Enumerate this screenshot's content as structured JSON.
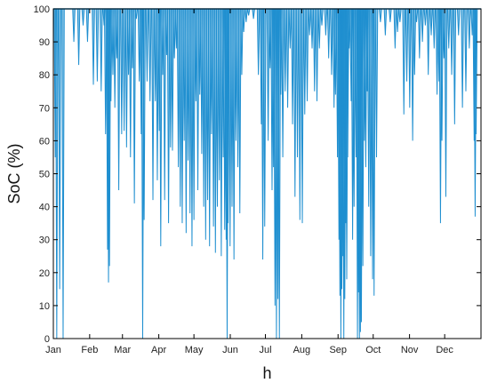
{
  "chart_data": {
    "type": "line",
    "title": "",
    "xlabel": "h",
    "ylabel": "SoC (%)",
    "ylim": [
      0,
      100
    ],
    "xlim": [
      0,
      8760
    ],
    "grid": false,
    "legend": "none",
    "yticks": [
      0,
      10,
      20,
      30,
      40,
      50,
      60,
      70,
      80,
      90,
      100
    ],
    "xtick_labels": [
      "Jan",
      "Feb",
      "Mar",
      "Apr",
      "May",
      "Jun",
      "Jul",
      "Aug",
      "Sep",
      "Oct",
      "Nov",
      "Dec"
    ],
    "xtick_positions": [
      0,
      744,
      1416,
      2160,
      2880,
      3624,
      4344,
      5088,
      5832,
      6552,
      7296,
      8016
    ],
    "series": [
      {
        "color": "#1f8fd0",
        "baseline": 100,
        "dips": [
          [
            40,
            55
          ],
          [
            70,
            0
          ],
          [
            130,
            15
          ],
          [
            200,
            0
          ],
          [
            420,
            90
          ],
          [
            520,
            83
          ],
          [
            610,
            95
          ],
          [
            700,
            90
          ],
          [
            820,
            77
          ],
          [
            900,
            78
          ],
          [
            980,
            75
          ],
          [
            1040,
            95
          ],
          [
            1070,
            62
          ],
          [
            1110,
            27
          ],
          [
            1130,
            17
          ],
          [
            1150,
            22
          ],
          [
            1180,
            72
          ],
          [
            1220,
            80
          ],
          [
            1260,
            70
          ],
          [
            1300,
            85
          ],
          [
            1340,
            45
          ],
          [
            1400,
            62
          ],
          [
            1450,
            63
          ],
          [
            1500,
            58
          ],
          [
            1540,
            80
          ],
          [
            1580,
            55
          ],
          [
            1620,
            82
          ],
          [
            1660,
            41
          ],
          [
            1700,
            97
          ],
          [
            1760,
            78
          ],
          [
            1800,
            62
          ],
          [
            1830,
            0
          ],
          [
            1860,
            36
          ],
          [
            1920,
            78
          ],
          [
            1980,
            72
          ],
          [
            2040,
            42
          ],
          [
            2090,
            72
          ],
          [
            2130,
            48
          ],
          [
            2170,
            63
          ],
          [
            2200,
            28
          ],
          [
            2240,
            80
          ],
          [
            2280,
            42
          ],
          [
            2320,
            86
          ],
          [
            2360,
            35
          ],
          [
            2400,
            58
          ],
          [
            2440,
            57
          ],
          [
            2480,
            85
          ],
          [
            2520,
            88
          ],
          [
            2560,
            52
          ],
          [
            2600,
            40
          ],
          [
            2640,
            35
          ],
          [
            2680,
            60
          ],
          [
            2720,
            32
          ],
          [
            2760,
            54
          ],
          [
            2800,
            38
          ],
          [
            2840,
            28
          ],
          [
            2880,
            36
          ],
          [
            2920,
            72
          ],
          [
            2960,
            45
          ],
          [
            3000,
            74
          ],
          [
            3040,
            56
          ],
          [
            3080,
            40
          ],
          [
            3120,
            30
          ],
          [
            3160,
            42
          ],
          [
            3200,
            28
          ],
          [
            3240,
            62
          ],
          [
            3280,
            34
          ],
          [
            3320,
            26
          ],
          [
            3360,
            40
          ],
          [
            3400,
            48
          ],
          [
            3440,
            25
          ],
          [
            3480,
            55
          ],
          [
            3510,
            33
          ],
          [
            3540,
            30
          ],
          [
            3560,
            0
          ],
          [
            3580,
            35
          ],
          [
            3620,
            28
          ],
          [
            3660,
            40
          ],
          [
            3700,
            24
          ],
          [
            3740,
            60
          ],
          [
            3780,
            52
          ],
          [
            3820,
            38
          ],
          [
            3860,
            80
          ],
          [
            3900,
            93
          ],
          [
            3950,
            96
          ],
          [
            4000,
            98
          ],
          [
            4100,
            97
          ],
          [
            4200,
            80
          ],
          [
            4260,
            65
          ],
          [
            4290,
            24
          ],
          [
            4330,
            34
          ],
          [
            4400,
            60
          ],
          [
            4440,
            82
          ],
          [
            4480,
            45
          ],
          [
            4510,
            52
          ],
          [
            4540,
            10
          ],
          [
            4570,
            0
          ],
          [
            4600,
            12
          ],
          [
            4630,
            0
          ],
          [
            4660,
            74
          ],
          [
            4700,
            55
          ],
          [
            4750,
            75
          ],
          [
            4800,
            70
          ],
          [
            4850,
            88
          ],
          [
            4900,
            65
          ],
          [
            4950,
            43
          ],
          [
            5000,
            55
          ],
          [
            5050,
            36
          ],
          [
            5100,
            35
          ],
          [
            5150,
            68
          ],
          [
            5200,
            72
          ],
          [
            5250,
            92
          ],
          [
            5300,
            88
          ],
          [
            5350,
            75
          ],
          [
            5400,
            72
          ],
          [
            5450,
            88
          ],
          [
            5500,
            95
          ],
          [
            5580,
            92
          ],
          [
            5640,
            85
          ],
          [
            5700,
            80
          ],
          [
            5750,
            70
          ],
          [
            5780,
            74
          ],
          [
            5820,
            55
          ],
          [
            5850,
            30
          ],
          [
            5870,
            13
          ],
          [
            5890,
            0
          ],
          [
            5910,
            15
          ],
          [
            5930,
            25
          ],
          [
            5950,
            0
          ],
          [
            5970,
            12
          ],
          [
            5990,
            35
          ],
          [
            6010,
            18
          ],
          [
            6030,
            55
          ],
          [
            6060,
            88
          ],
          [
            6100,
            72
          ],
          [
            6130,
            30
          ],
          [
            6160,
            40
          ],
          [
            6200,
            55
          ],
          [
            6230,
            0
          ],
          [
            6250,
            14
          ],
          [
            6270,
            0
          ],
          [
            6290,
            2
          ],
          [
            6310,
            5
          ],
          [
            6340,
            22
          ],
          [
            6370,
            60
          ],
          [
            6400,
            52
          ],
          [
            6430,
            75
          ],
          [
            6460,
            40
          ],
          [
            6500,
            25
          ],
          [
            6540,
            18
          ],
          [
            6570,
            13
          ],
          [
            6620,
            55
          ],
          [
            6700,
            96
          ],
          [
            6800,
            92
          ],
          [
            6900,
            96
          ],
          [
            7000,
            88
          ],
          [
            7050,
            93
          ],
          [
            7100,
            96
          ],
          [
            7180,
            68
          ],
          [
            7240,
            78
          ],
          [
            7300,
            70
          ],
          [
            7360,
            60
          ],
          [
            7400,
            80
          ],
          [
            7440,
            96
          ],
          [
            7500,
            85
          ],
          [
            7560,
            90
          ],
          [
            7620,
            95
          ],
          [
            7680,
            80
          ],
          [
            7740,
            92
          ],
          [
            7800,
            88
          ],
          [
            7860,
            74
          ],
          [
            7900,
            78
          ],
          [
            7930,
            35
          ],
          [
            7960,
            60
          ],
          [
            8000,
            85
          ],
          [
            8040,
            43
          ],
          [
            8100,
            88
          ],
          [
            8160,
            80
          ],
          [
            8220,
            65
          ],
          [
            8300,
            92
          ],
          [
            8380,
            70
          ],
          [
            8450,
            75
          ],
          [
            8520,
            88
          ],
          [
            8580,
            92
          ],
          [
            8620,
            60
          ],
          [
            8640,
            37
          ],
          [
            8660,
            62
          ]
        ]
      }
    ]
  }
}
